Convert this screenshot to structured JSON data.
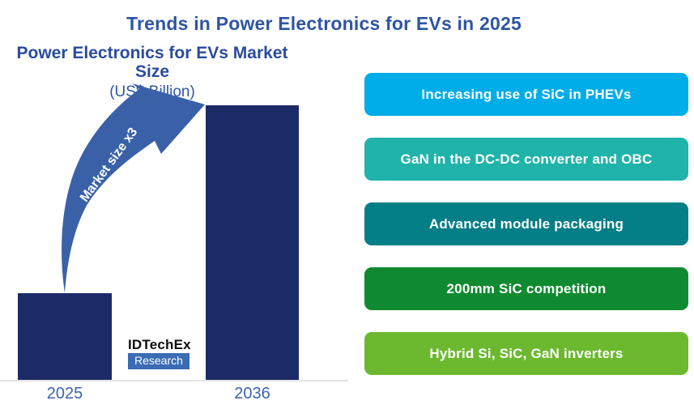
{
  "title": "Trends in Power Electronics for EVs in 2025",
  "chart": {
    "title": "Power Electronics for EVs Market Size",
    "unit_label": "(US$ Billion)",
    "arrow_label": "Market size x3",
    "x_labels": [
      "2025",
      "2036"
    ],
    "logo": {
      "name": "IDTechEx",
      "sub": "Research"
    }
  },
  "chart_data": {
    "type": "bar",
    "categories": [
      "2025",
      "2036"
    ],
    "values": [
      1,
      3.15
    ],
    "values_note": "relative scale (2025 = 1); no numeric axis shown, annotation states market size x3 from 2025 to 2036",
    "title": "Power Electronics for EVs Market Size",
    "ylabel": "US$ Billion",
    "annotation": "Market size x3",
    "grid": false,
    "legend": "none",
    "bar_color": "#1d2a68"
  },
  "trends": [
    {
      "label": "Increasing use of SiC in PHEVs",
      "color": "#00ade8"
    },
    {
      "label": "GaN in the DC-DC converter and OBC",
      "color": "#1fb3aa"
    },
    {
      "label": "Advanced module packaging",
      "color": "#047e87"
    },
    {
      "label": "200mm SiC competition",
      "color": "#108a30"
    },
    {
      "label": "Hybrid Si, SiC, GaN inverters",
      "color": "#6cb92f"
    }
  ],
  "colors": {
    "title_blue": "#2e55a3",
    "bar_navy": "#1d2a68",
    "arrow_blue": "#3a61a8",
    "axis_gray": "#e3e3e3",
    "year_label_blue": "#3a64ad",
    "logo_box_blue": "#3a6bb5"
  }
}
